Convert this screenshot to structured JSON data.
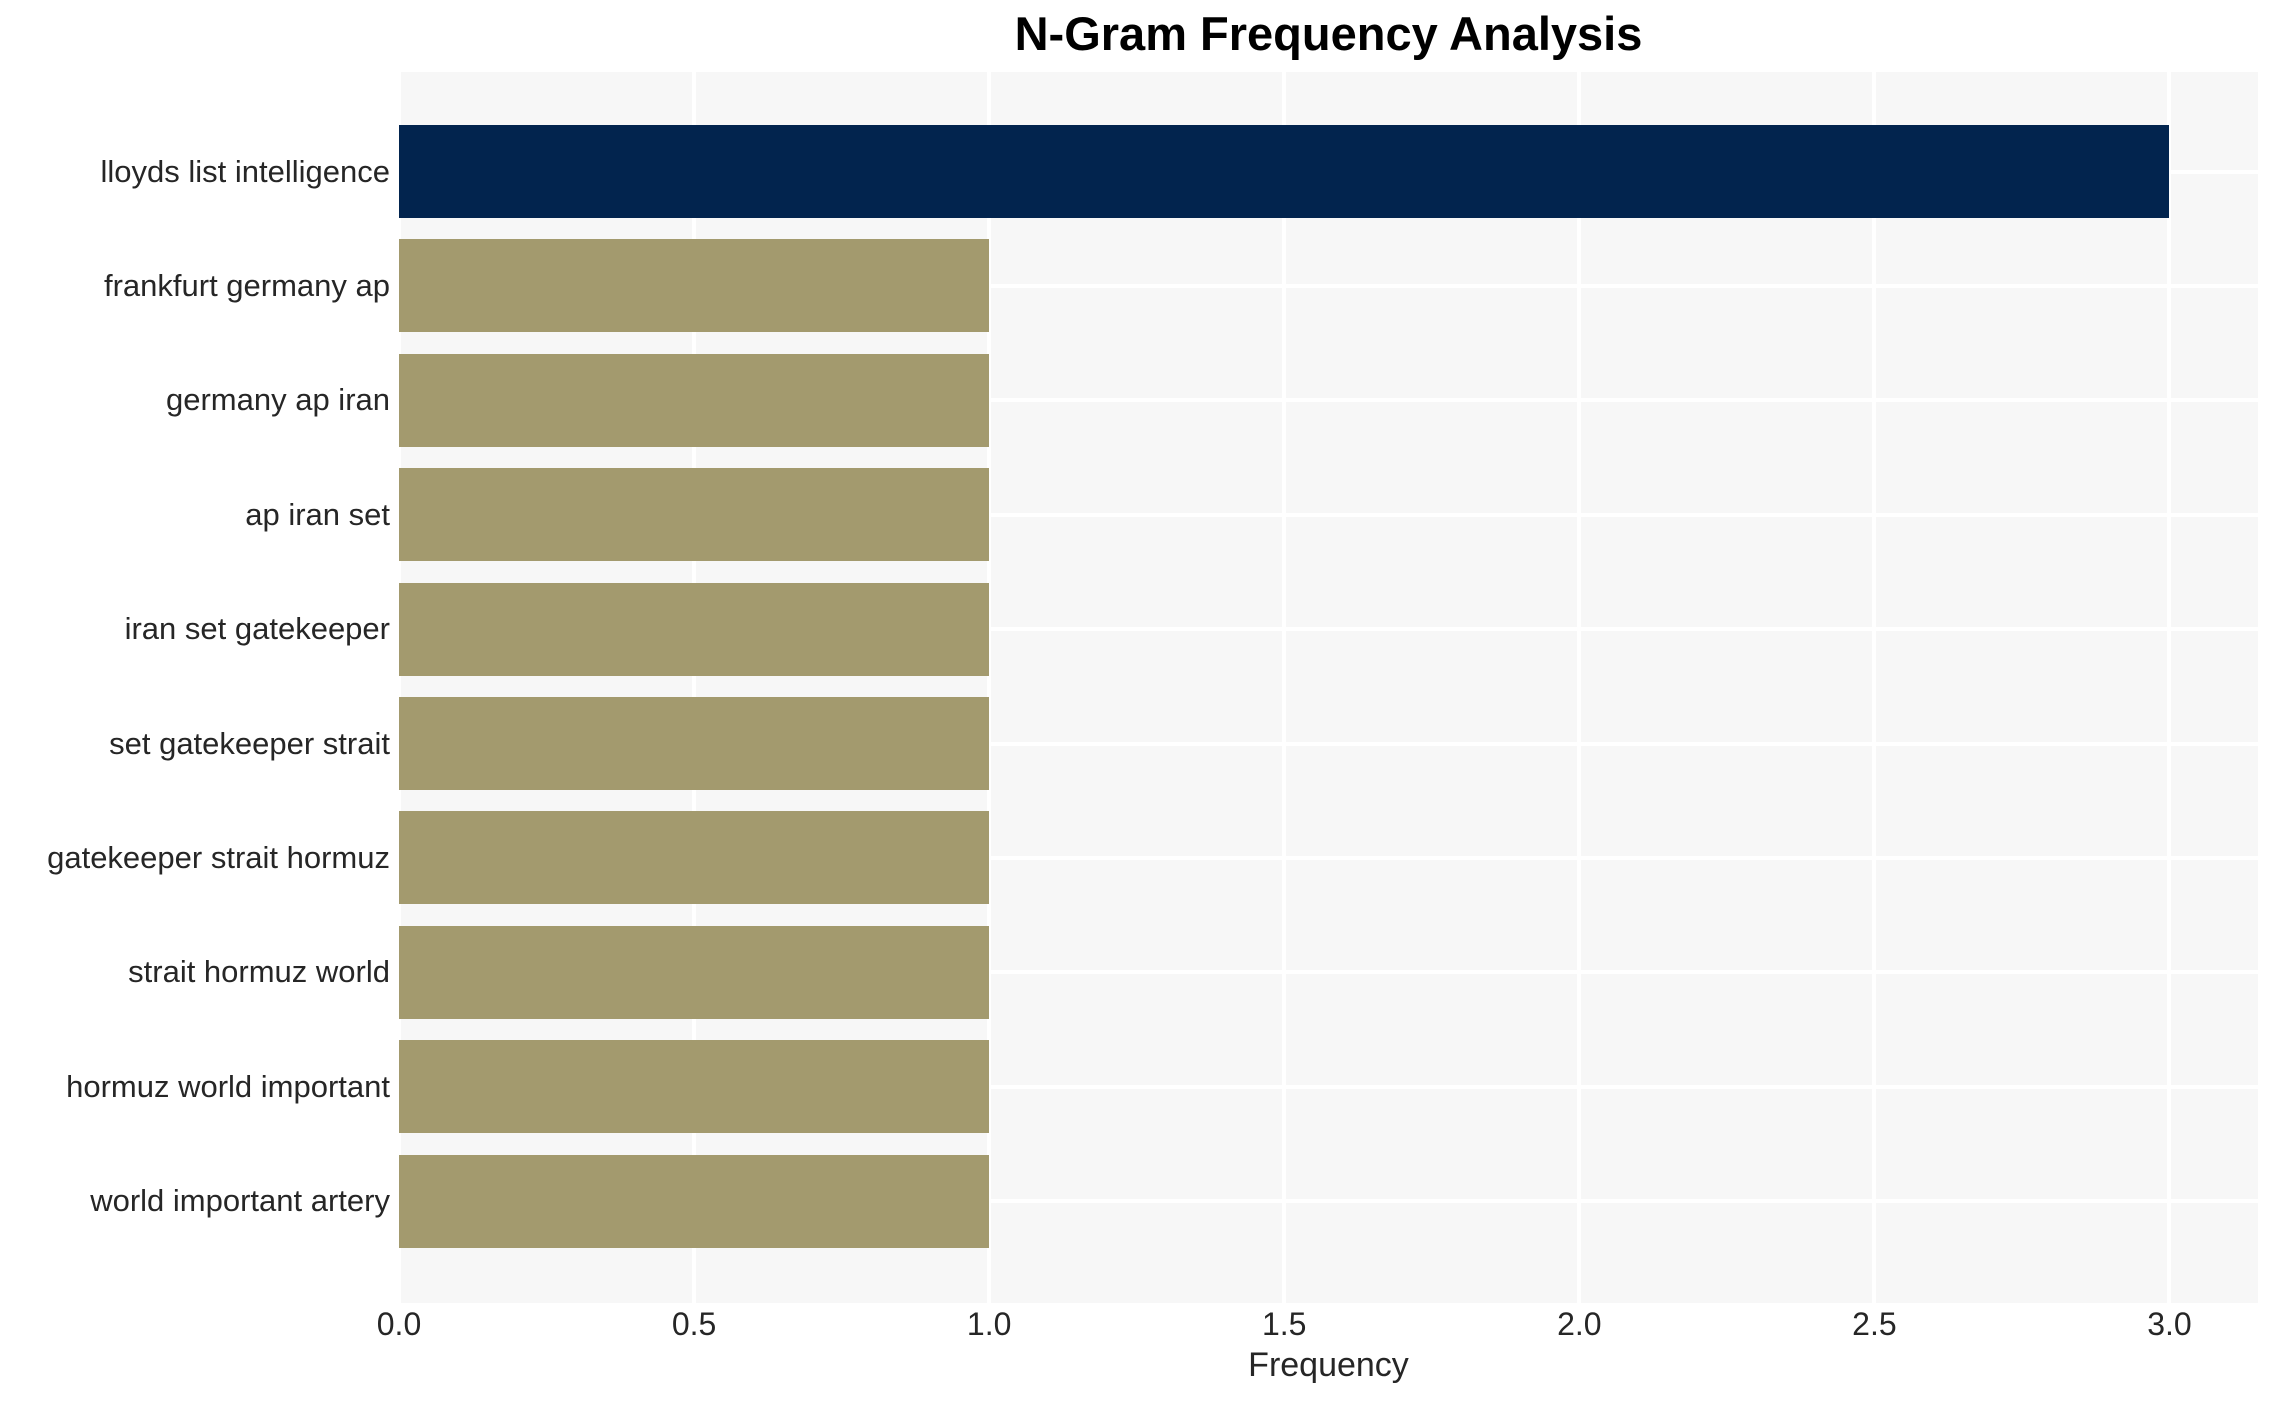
{
  "chart_data": {
    "type": "bar",
    "orientation": "horizontal",
    "title": "N-Gram Frequency Analysis",
    "xlabel": "Frequency",
    "ylabel": "",
    "categories": [
      "lloyds list intelligence",
      "frankfurt germany ap",
      "germany ap iran",
      "ap iran set",
      "iran set gatekeeper",
      "set gatekeeper strait",
      "gatekeeper strait hormuz",
      "strait hormuz world",
      "hormuz world important",
      "world important artery"
    ],
    "values": [
      3,
      1,
      1,
      1,
      1,
      1,
      1,
      1,
      1,
      1
    ],
    "bar_colors": [
      "#02244E",
      "#A39A6E",
      "#A39A6E",
      "#A39A6E",
      "#A39A6E",
      "#A39A6E",
      "#A39A6E",
      "#A39A6E",
      "#A39A6E",
      "#A39A6E"
    ],
    "xtick_labels": [
      "0.0",
      "0.5",
      "1.0",
      "1.5",
      "2.0",
      "2.5",
      "3.0"
    ],
    "xtick_values": [
      0,
      0.5,
      1,
      1.5,
      2,
      2.5,
      3
    ],
    "xlim": [
      0,
      3.15
    ],
    "grid": true,
    "legend": "none",
    "colors": {
      "plot_background": "#F7F7F7",
      "grid_line": "#FFFFFF",
      "tick_text": "#262626",
      "label_text": "#262626",
      "title_text": "#000000"
    }
  }
}
